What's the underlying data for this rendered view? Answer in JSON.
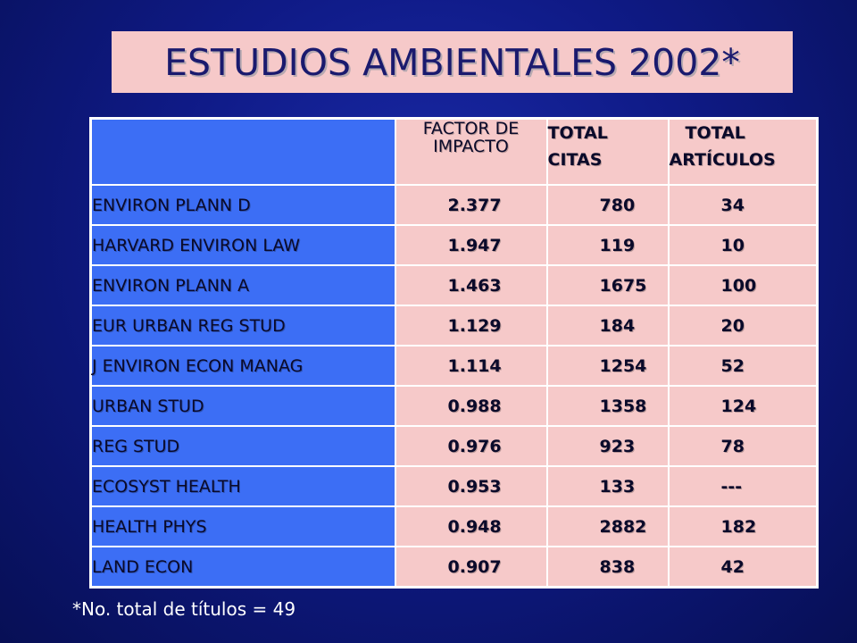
{
  "title": "ESTUDIOS AMBIENTALES 2002*",
  "table": {
    "headers": {
      "name": "",
      "impact": "FACTOR DE IMPACTO",
      "citas_line1": "TOTAL",
      "citas_line2": "CITAS",
      "articulos_line1": "TOTAL",
      "articulos_line2": "ARTÍCULOS"
    },
    "rows": [
      {
        "name": "ENVIRON PLANN D",
        "impact": "2.377",
        "citas": "780",
        "articulos": "34"
      },
      {
        "name": "HARVARD ENVIRON LAW",
        "impact": "1.947",
        "citas": "119",
        "articulos": "10"
      },
      {
        "name": "ENVIRON PLANN A",
        "impact": "1.463",
        "citas": "1675",
        "articulos": "100"
      },
      {
        "name": "EUR URBAN REG STUD",
        "impact": "1.129",
        "citas": "184",
        "articulos": "20"
      },
      {
        "name": "J ENVIRON ECON MANAG",
        "impact": "1.114",
        "citas": "1254",
        "articulos": "52"
      },
      {
        "name": "URBAN STUD",
        "impact": "0.988",
        "citas": "1358",
        "articulos": "124"
      },
      {
        "name": "REG STUD",
        "impact": "0.976",
        "citas": "923",
        "articulos": "78"
      },
      {
        "name": "ECOSYST HEALTH",
        "impact": "0.953",
        "citas": "133",
        "articulos": "---"
      },
      {
        "name": "HEALTH PHYS",
        "impact": "0.948",
        "citas": "2882",
        "articulos": "182"
      },
      {
        "name": "LAND ECON",
        "impact": "0.907",
        "citas": "838",
        "articulos": "42"
      }
    ]
  },
  "footnote": "*No. total de títulos = 49",
  "colors": {
    "background": "#0f1a86",
    "cell_blue": "#3c6ef5",
    "cell_pink": "#f6c9c9",
    "title_box": "#f6c9c9"
  }
}
